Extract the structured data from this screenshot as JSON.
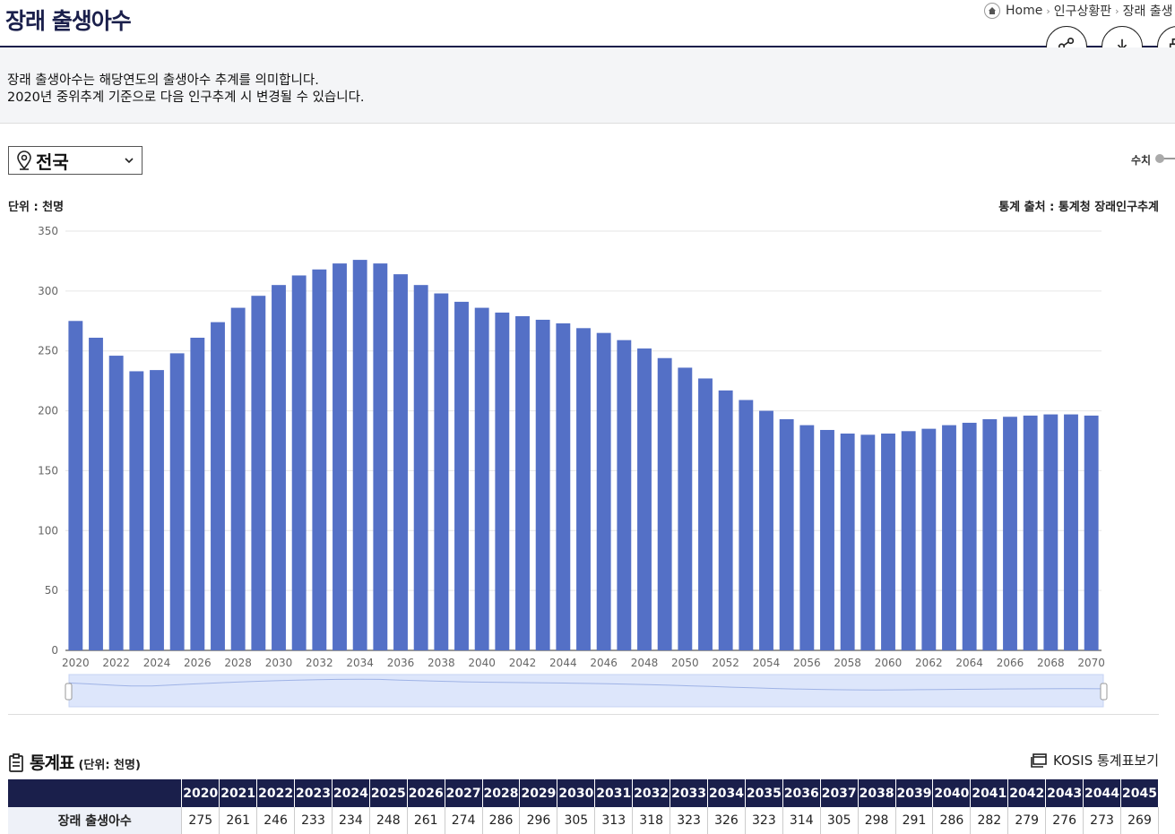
{
  "header": {
    "title": "장래 출생아수",
    "breadcrumb": [
      "Home",
      "인구상황판",
      "장래 출생"
    ]
  },
  "description": {
    "line1": "장래 출생아수는 해당연도의 출생아수 추계를 의미합니다.",
    "line2": "2020년 중위추계 기준으로 다음 인구추계 시 변경될 수 있습니다."
  },
  "region_select": {
    "value": "전국"
  },
  "view_toggle": {
    "label": "수치"
  },
  "unit_label": "단위 : 천명",
  "source_label": "통계 출처 : 통계청 장래인구추계",
  "chart_data": {
    "type": "bar",
    "categories": [
      "2020",
      "2021",
      "2022",
      "2023",
      "2024",
      "2025",
      "2026",
      "2027",
      "2028",
      "2029",
      "2030",
      "2031",
      "2032",
      "2033",
      "2034",
      "2035",
      "2036",
      "2037",
      "2038",
      "2039",
      "2040",
      "2041",
      "2042",
      "2043",
      "2044",
      "2045",
      "2046",
      "2047",
      "2048",
      "2049",
      "2050",
      "2051",
      "2052",
      "2053",
      "2054",
      "2055",
      "2056",
      "2057",
      "2058",
      "2059",
      "2060",
      "2061",
      "2062",
      "2063",
      "2064",
      "2065",
      "2066",
      "2067",
      "2068",
      "2069",
      "2070"
    ],
    "values": [
      275,
      261,
      246,
      233,
      234,
      248,
      261,
      274,
      286,
      296,
      305,
      313,
      318,
      323,
      326,
      323,
      314,
      305,
      298,
      291,
      286,
      282,
      279,
      276,
      273,
      269,
      265,
      259,
      252,
      244,
      236,
      227,
      217,
      209,
      200,
      193,
      188,
      184,
      181,
      180,
      181,
      183,
      185,
      188,
      190,
      193,
      195,
      196,
      197,
      197,
      196
    ],
    "x_tick_labels": [
      "2020",
      "2022",
      "2024",
      "2026",
      "2028",
      "2030",
      "2032",
      "2034",
      "2036",
      "2038",
      "2040",
      "2042",
      "2044",
      "2046",
      "2048",
      "2050",
      "2052",
      "2054",
      "2056",
      "2058",
      "2060",
      "2062",
      "2064",
      "2066",
      "2068",
      "2070"
    ],
    "y_ticks": [
      "0",
      "50",
      "100",
      "150",
      "200",
      "250",
      "300",
      "350"
    ],
    "ylim": [
      0,
      350
    ],
    "bar_color": "#5470c6",
    "grid": true,
    "legend": "none"
  },
  "table": {
    "title": "통계표",
    "unit": "(단위: 천명)",
    "kosis_link": "KOSIS 통계표보기",
    "row_label": "장래 출생아수",
    "years": [
      "2020",
      "2021",
      "2022",
      "2023",
      "2024",
      "2025",
      "2026",
      "2027",
      "2028",
      "2029",
      "2030",
      "2031",
      "2032",
      "2033",
      "2034",
      "2035",
      "2036",
      "2037",
      "2038",
      "2039",
      "2040",
      "2041",
      "2042",
      "2043",
      "2044",
      "2045"
    ],
    "values": [
      "275",
      "261",
      "246",
      "233",
      "234",
      "248",
      "261",
      "274",
      "286",
      "296",
      "305",
      "313",
      "318",
      "323",
      "326",
      "323",
      "314",
      "305",
      "298",
      "291",
      "286",
      "282",
      "279",
      "276",
      "273",
      "269"
    ]
  },
  "colors": {
    "navy": "#1a1f4b",
    "bar": "#5470c6"
  }
}
